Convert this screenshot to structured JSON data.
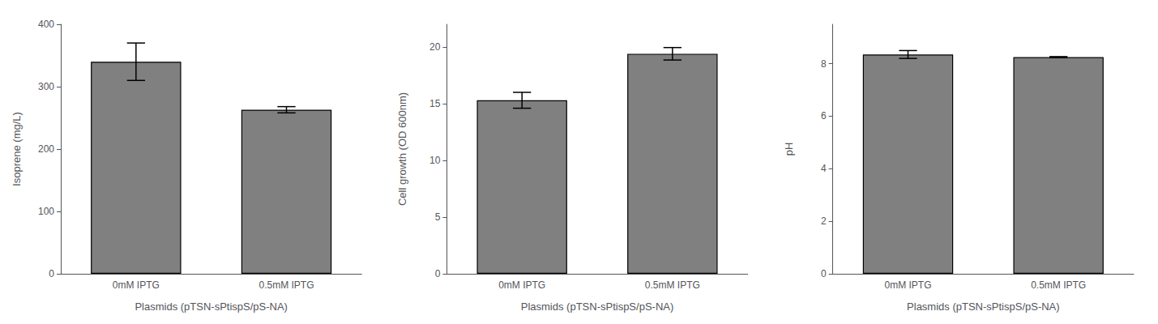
{
  "chart_data": [
    {
      "type": "bar",
      "ylabel": "Isoprene (mg/L)",
      "xlabel": "Plasmids (pTSN-sPtispS/pS-NA)",
      "categories": [
        "0mM IPTG",
        "0.5mM IPTG"
      ],
      "values": [
        340,
        263
      ],
      "errors": [
        30,
        5
      ],
      "color": "#808080",
      "ylim": [
        0,
        400
      ],
      "yticks": [
        0,
        100,
        200,
        300,
        400
      ],
      "grid": false
    },
    {
      "type": "bar",
      "ylabel": "Cell growth (OD 600nm)",
      "xlabel": "Plasmids (pTSN-sPtispS/pS-NA)",
      "categories": [
        "0mM IPTG",
        "0.5mM IPTG"
      ],
      "values": [
        15.3,
        19.4
      ],
      "errors": [
        0.7,
        0.55
      ],
      "color": "#808080",
      "ylim": [
        0,
        22
      ],
      "yticks": [
        0,
        5,
        10,
        15,
        20
      ],
      "grid": false
    },
    {
      "type": "bar",
      "ylabel": "pH",
      "xlabel": "Plasmids (pTSN-sPtispS/pS-NA)",
      "categories": [
        "0mM IPTG",
        "0.5mM IPTG"
      ],
      "values": [
        8.35,
        8.25
      ],
      "errors": [
        0.15,
        0.02
      ],
      "color": "#808080",
      "ylim": [
        0,
        9.5
      ],
      "yticks": [
        0,
        2,
        4,
        6,
        8
      ],
      "grid": false
    }
  ]
}
